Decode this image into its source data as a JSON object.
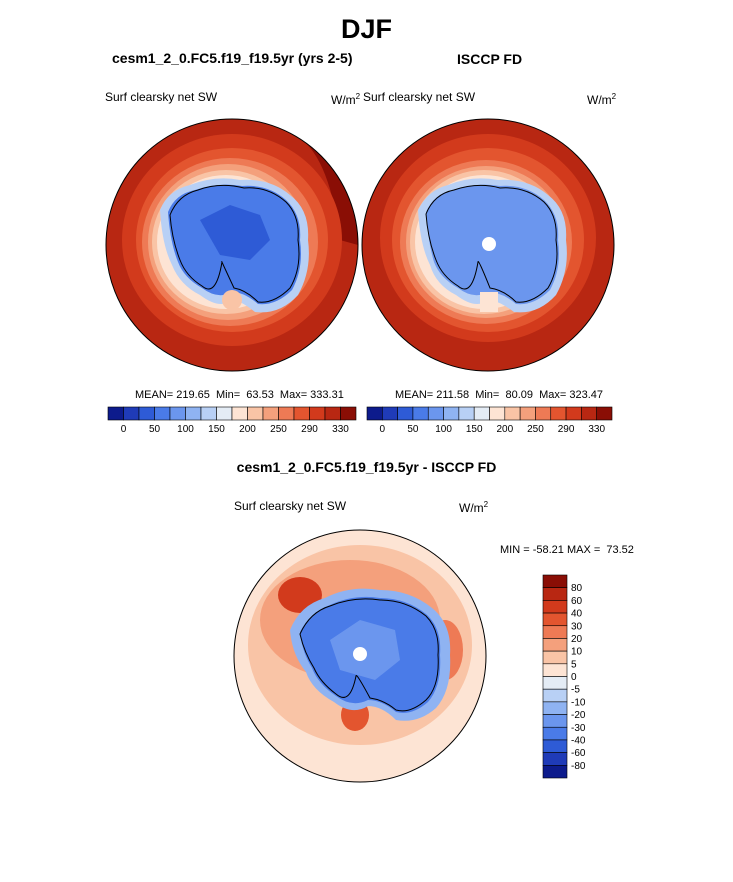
{
  "title": "DJF",
  "panels": {
    "left": {
      "title": "cesm1_2_0.FC5.f19_f19.5yr (yrs 2-5)",
      "variable": "Surf clearsky net SW",
      "units_base": "W/m",
      "units_exp": "2",
      "stats": "MEAN= 219.65  Min=  63.53  Max= 333.31"
    },
    "right": {
      "title": "ISCCP FD",
      "variable": "Surf clearsky net SW",
      "units_base": "W/m",
      "units_exp": "2",
      "stats": "MEAN= 211.58  Min=  80.09  Max= 323.47"
    },
    "diff": {
      "title": "cesm1_2_0.FC5.f19_f19.5yr - ISCCP FD",
      "variable": "Surf clearsky net SW",
      "units_base": "W/m",
      "units_exp": "2",
      "minmax": "MIN = -58.21 MAX =  73.52"
    }
  },
  "chart_data": [
    {
      "type": "heatmap",
      "projection": "south-polar-stereographic",
      "title": "cesm1_2_0.FC5.f19_f19.5yr (yrs 2-5)",
      "variable": "Surf clearsky net SW",
      "units": "W/m2",
      "mean": 219.65,
      "min": 63.53,
      "max": 333.31,
      "colorbar": {
        "orientation": "horizontal",
        "ticks": [
          "0",
          "50",
          "100",
          "150",
          "200",
          "250",
          "290",
          "330"
        ],
        "colors": [
          "#0d1b8c",
          "#1f3bb8",
          "#2e5bd6",
          "#4a7be8",
          "#6b96ee",
          "#8fb3f2",
          "#b8d0f5",
          "#e4ecf5",
          "#fde4d4",
          "#f9c4a6",
          "#f4a07c",
          "#ee7a55",
          "#e3552f",
          "#d23a1c",
          "#b82712",
          "#8a0e05"
        ]
      }
    },
    {
      "type": "heatmap",
      "projection": "south-polar-stereographic",
      "title": "ISCCP FD",
      "variable": "Surf clearsky net SW",
      "units": "W/m2",
      "mean": 211.58,
      "min": 80.09,
      "max": 323.47,
      "colorbar": {
        "orientation": "horizontal",
        "ticks": [
          "0",
          "50",
          "100",
          "150",
          "200",
          "250",
          "290",
          "330"
        ],
        "colors": [
          "#0d1b8c",
          "#1f3bb8",
          "#2e5bd6",
          "#4a7be8",
          "#6b96ee",
          "#8fb3f2",
          "#b8d0f5",
          "#e4ecf5",
          "#fde4d4",
          "#f9c4a6",
          "#f4a07c",
          "#ee7a55",
          "#e3552f",
          "#d23a1c",
          "#b82712",
          "#8a0e05"
        ]
      }
    },
    {
      "type": "heatmap",
      "projection": "south-polar-stereographic",
      "title": "cesm1_2_0.FC5.f19_f19.5yr - ISCCP FD",
      "variable": "Surf clearsky net SW",
      "units": "W/m2",
      "min": -58.21,
      "max": 73.52,
      "colorbar": {
        "orientation": "vertical",
        "ticks": [
          "80",
          "60",
          "40",
          "30",
          "20",
          "10",
          "5",
          "0",
          "-5",
          "-10",
          "-20",
          "-30",
          "-40",
          "-60",
          "-80"
        ],
        "colors": [
          "#8a0e05",
          "#b82712",
          "#d23a1c",
          "#e3552f",
          "#ee7a55",
          "#f4a07c",
          "#f9c4a6",
          "#fde4d4",
          "#e4ecf5",
          "#b8d0f5",
          "#8fb3f2",
          "#6b96ee",
          "#4a7be8",
          "#2e5bd6",
          "#1f3bb8",
          "#0d1b8c"
        ]
      }
    }
  ]
}
